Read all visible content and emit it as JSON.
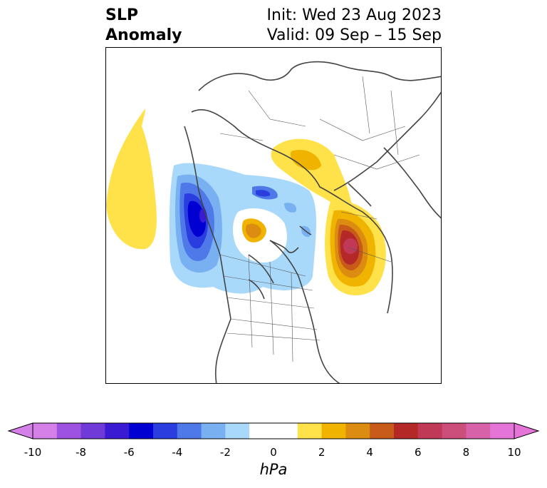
{
  "title": {
    "left": "SLP\nAnomaly",
    "right_line1": "Init: Wed 23 Aug 2023",
    "right_line2": "Valid: 09 Sep – 15 Sep"
  },
  "colorbar": {
    "unit": "hPa",
    "ticks": [
      "-10",
      "-8",
      "-6",
      "-4",
      "-2",
      "0",
      "2",
      "4",
      "6",
      "8",
      "10"
    ],
    "colors": [
      "#d580e8",
      "#9d52e0",
      "#6f3ad8",
      "#3a1ad2",
      "#0000d2",
      "#2a3ee0",
      "#4f78e8",
      "#78b0f2",
      "#a8d8fa",
      "#ffffff",
      "#ffffff",
      "#ffe14a",
      "#f0b400",
      "#dc8c10",
      "#c85a1a",
      "#b42828",
      "#c03a58",
      "#cc4e7a",
      "#d862a8",
      "#e474d8"
    ],
    "extend_low_color": "#d580e8",
    "extend_high_color": "#e474d8"
  }
}
